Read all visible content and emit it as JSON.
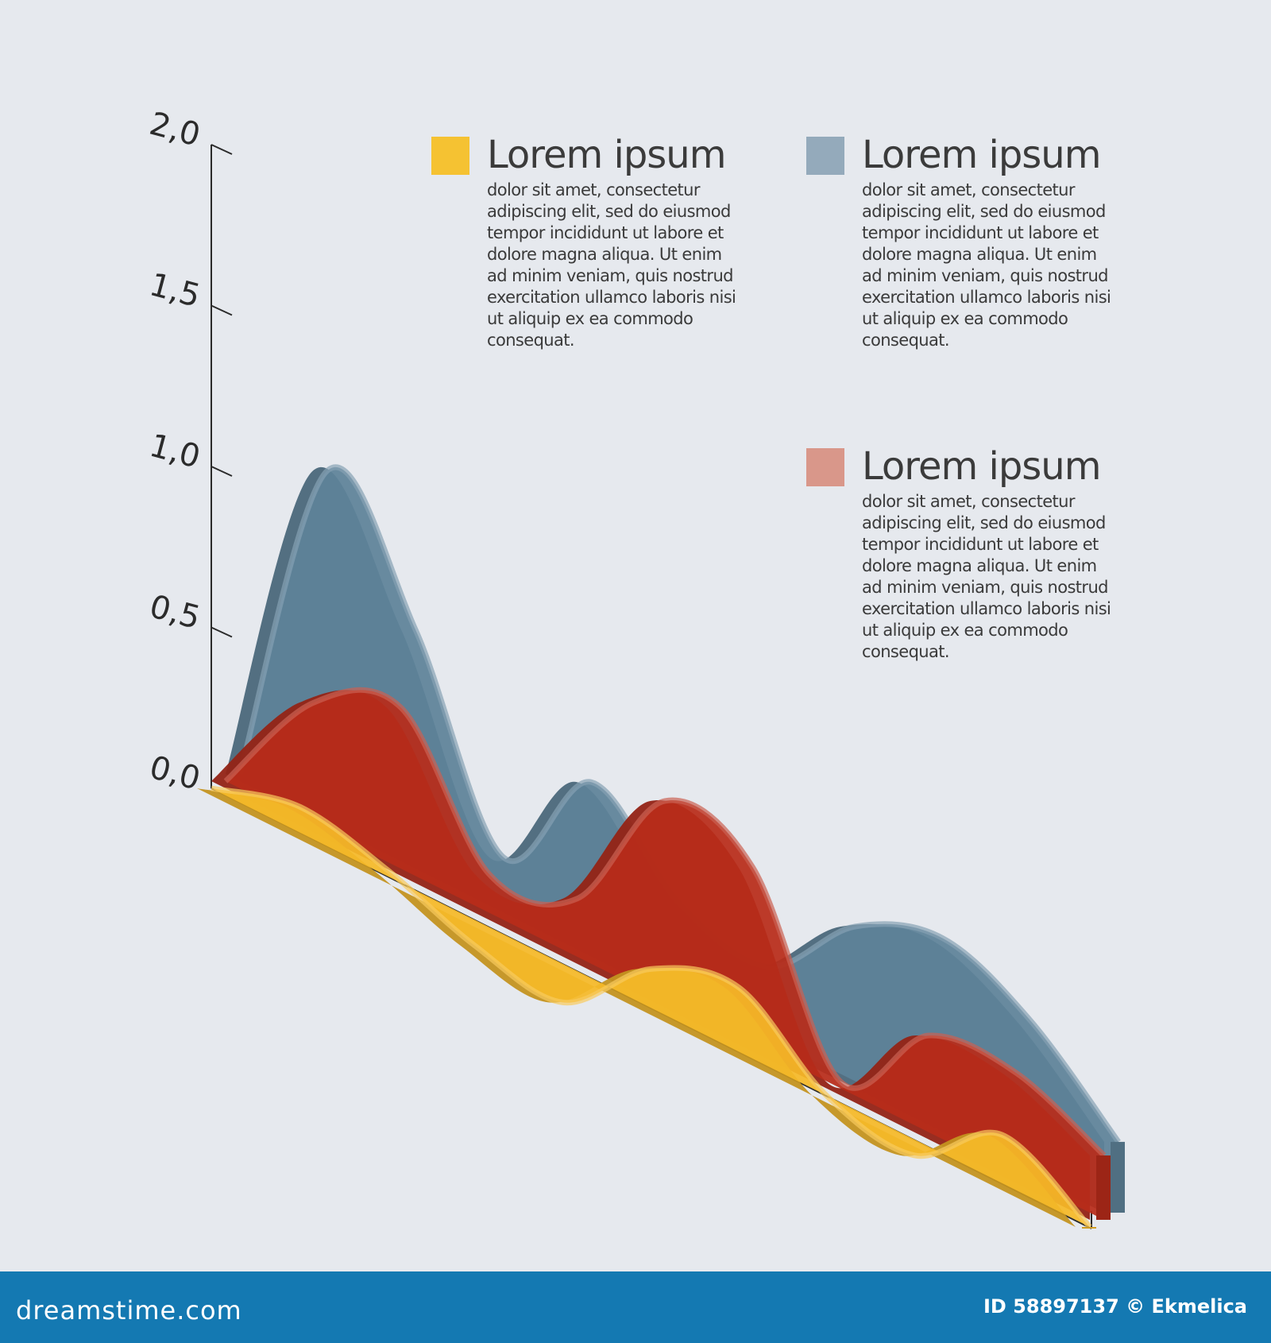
{
  "chart_data": {
    "type": "area",
    "ylim": [
      0,
      2
    ],
    "y_ticks": [
      "0,0",
      "0,5",
      "1,0",
      "1,5",
      "2,0"
    ],
    "series": [
      {
        "color": "#5e8299",
        "values": [
          0.0,
          1.08,
          0.72,
          0.15,
          0.52,
          0.28,
          0.22,
          0.48,
          0.58,
          0.46,
          0.22
        ]
      },
      {
        "color": "#b82c1a",
        "values": [
          0.0,
          0.38,
          0.5,
          0.12,
          0.18,
          0.62,
          0.55,
          0.02,
          0.3,
          0.32,
          0.2
        ]
      },
      {
        "color": "#f5b928",
        "values": [
          0.0,
          0.08,
          0.02,
          -0.08,
          -0.12,
          0.12,
          0.2,
          0.0,
          -0.05,
          0.15,
          0.0
        ]
      }
    ]
  },
  "legend": [
    {
      "color": "#f5c232",
      "title": "Lorem ipsum",
      "text": "dolor sit amet, consectetur adipiscing elit, sed do eiusmod tempor incididunt ut labore et dolore magna aliqua. Ut enim ad minim veniam, quis nostrud exercitation ullamco laboris nisi ut aliquip ex ea commodo consequat."
    },
    {
      "color": "#94aabb",
      "title": "Lorem ipsum",
      "text": "dolor sit amet, consectetur adipiscing elit, sed do eiusmod tempor incididunt ut labore et dolore magna aliqua. Ut enim ad minim veniam, quis nostrud exercitation ullamco laboris nisi ut aliquip ex ea commodo consequat."
    },
    {
      "color": "#d9978a",
      "title": "Lorem ipsum",
      "text": "dolor sit amet, consectetur adipiscing elit, sed do eiusmod tempor incididunt ut labore et dolore magna aliqua. Ut enim ad minim veniam, quis nostrud exercitation ullamco laboris nisi ut aliquip ex ea commodo consequat."
    }
  ],
  "footer": {
    "site": "dreamstime.com",
    "credit": "ID 58897137 © Ekmelica"
  }
}
